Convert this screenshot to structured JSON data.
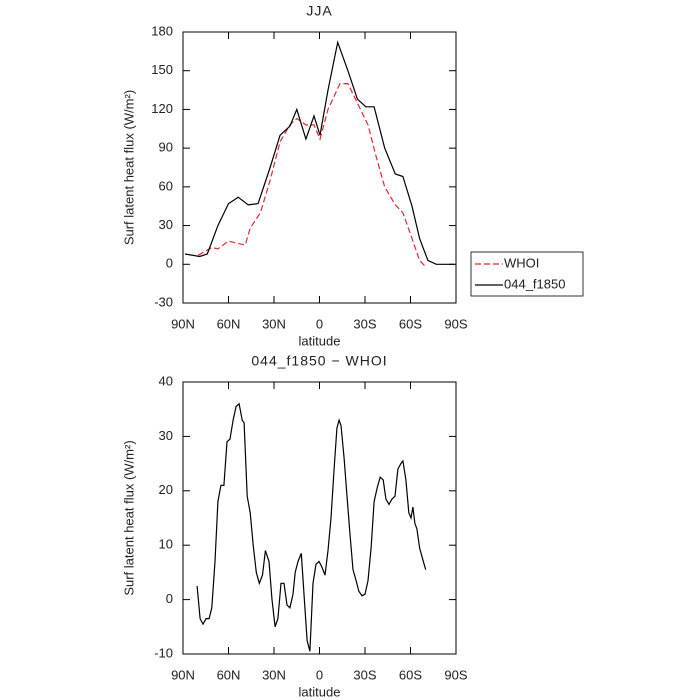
{
  "chart_data": [
    {
      "type": "line",
      "title": "JJA",
      "xlabel": "latitude",
      "ylabel": "Surf latent heat flux (W/m²)",
      "xlim": [
        90,
        -90
      ],
      "ylim": [
        -30,
        180
      ],
      "xticks": [
        {
          "value": 90,
          "label": "90N"
        },
        {
          "value": 60,
          "label": "60N"
        },
        {
          "value": 30,
          "label": "30N"
        },
        0,
        {
          "value": -30,
          "label": "30S"
        },
        {
          "value": -60,
          "label": "60S"
        },
        {
          "value": -90,
          "label": "90S"
        }
      ],
      "yticks": [
        -30,
        0,
        30,
        60,
        90,
        120,
        150,
        180
      ],
      "legend": "right",
      "series": [
        {
          "name": "WHOI",
          "color": "#e8262c",
          "dash": true,
          "x": [
            80,
            75.5,
            71,
            67,
            60,
            53.6,
            49,
            45.7,
            39,
            32.6,
            26,
            19.5,
            15,
            9,
            3.6,
            -0.3,
            -5.6,
            -13.5,
            -18.7,
            -25,
            -32,
            -37,
            -43,
            -50,
            -55,
            -61,
            -66,
            -70
          ],
          "values": [
            7,
            10,
            13,
            12,
            18,
            16,
            15,
            28,
            40,
            65,
            95,
            108,
            113,
            108,
            108,
            97,
            120,
            140,
            140,
            125,
            108,
            85,
            60,
            46,
            40,
            20,
            3,
            -2
          ]
        },
        {
          "name": "044_f1850",
          "color": "#000000",
          "dash": false,
          "x": [
            88.7,
            79,
            74,
            67,
            60,
            53.6,
            47,
            40.5,
            32.6,
            26,
            19.5,
            15,
            9,
            3.6,
            -0.3,
            -5.6,
            -12,
            -18.7,
            -25,
            -30.5,
            -36,
            -43,
            -50,
            -55,
            -61,
            -66,
            -71.5,
            -77,
            -89
          ],
          "values": [
            8,
            6,
            8,
            30,
            47,
            52,
            46,
            47,
            75,
            100,
            107,
            120,
            97,
            115,
            100,
            135,
            172,
            150,
            128,
            122,
            122,
            90,
            70,
            68,
            45,
            20,
            3,
            0,
            0
          ]
        }
      ]
    },
    {
      "type": "line",
      "title": "044_f1850 − WHOI",
      "xlabel": "latitude",
      "ylabel": "Surf latent heat flux (W/m²)",
      "xlim": [
        90,
        -90
      ],
      "ylim": [
        -10,
        40
      ],
      "xticks": [
        {
          "value": 90,
          "label": "90N"
        },
        {
          "value": 60,
          "label": "60N"
        },
        {
          "value": 30,
          "label": "30N"
        },
        0,
        {
          "value": -30,
          "label": "30S"
        },
        {
          "value": -60,
          "label": "60S"
        },
        {
          "value": -90,
          "label": "90S"
        }
      ],
      "yticks": [
        -10,
        0,
        10,
        20,
        30,
        40
      ],
      "series": [
        {
          "color": "#000000",
          "dash": false,
          "x": [
            80.7,
            78.7,
            76.8,
            74.8,
            72.8,
            71,
            68.9,
            67,
            65,
            63,
            61,
            59,
            57,
            55,
            53,
            51,
            49.7,
            47.7,
            45.7,
            43.7,
            41.7,
            39.7,
            37.6,
            35.7,
            33.3,
            31.3,
            29.3,
            27.4,
            25.4,
            23.4,
            21.4,
            19.5,
            17.5,
            16,
            14.2,
            12,
            10.2,
            8.2,
            6.3,
            4.3,
            2.3,
            0.3,
            -1.6,
            -3.6,
            -5.6,
            -7.6,
            -9.6,
            -11.5,
            -12.9,
            -14.2,
            -16.2,
            -18.1,
            -20.1,
            -22.1,
            -24.1,
            -26,
            -28,
            -30,
            -32,
            -34,
            -36,
            -38,
            -40,
            -42,
            -43.8,
            -45.8,
            -47.8,
            -49.8,
            -51.7,
            -53.7,
            -55,
            -57,
            -58.9,
            -60.3,
            -61.6,
            -62.9,
            -64.2,
            -66,
            -68,
            -70
          ],
          "values": [
            2.5,
            -3.5,
            -4.5,
            -3.5,
            -3.5,
            -1.5,
            7,
            18,
            21,
            21,
            29,
            29.5,
            33,
            35.5,
            36,
            33,
            32.5,
            19,
            16,
            10,
            5,
            3,
            4.5,
            9,
            7,
            0,
            -5,
            -3.5,
            3,
            3,
            -1,
            -1.5,
            1,
            5,
            7,
            8.5,
            1,
            -7.5,
            -9.5,
            3,
            6.5,
            7,
            6,
            4.5,
            9,
            15,
            24,
            31.5,
            33,
            32,
            26,
            19,
            12,
            5.5,
            3.5,
            1.5,
            0.7,
            1,
            3.5,
            9.5,
            18,
            20.5,
            22.5,
            22,
            18.5,
            17.5,
            18.5,
            19,
            24,
            25,
            25.5,
            22,
            16,
            15,
            17,
            14,
            13,
            9.5,
            7.5,
            5.5
          ]
        }
      ]
    }
  ]
}
